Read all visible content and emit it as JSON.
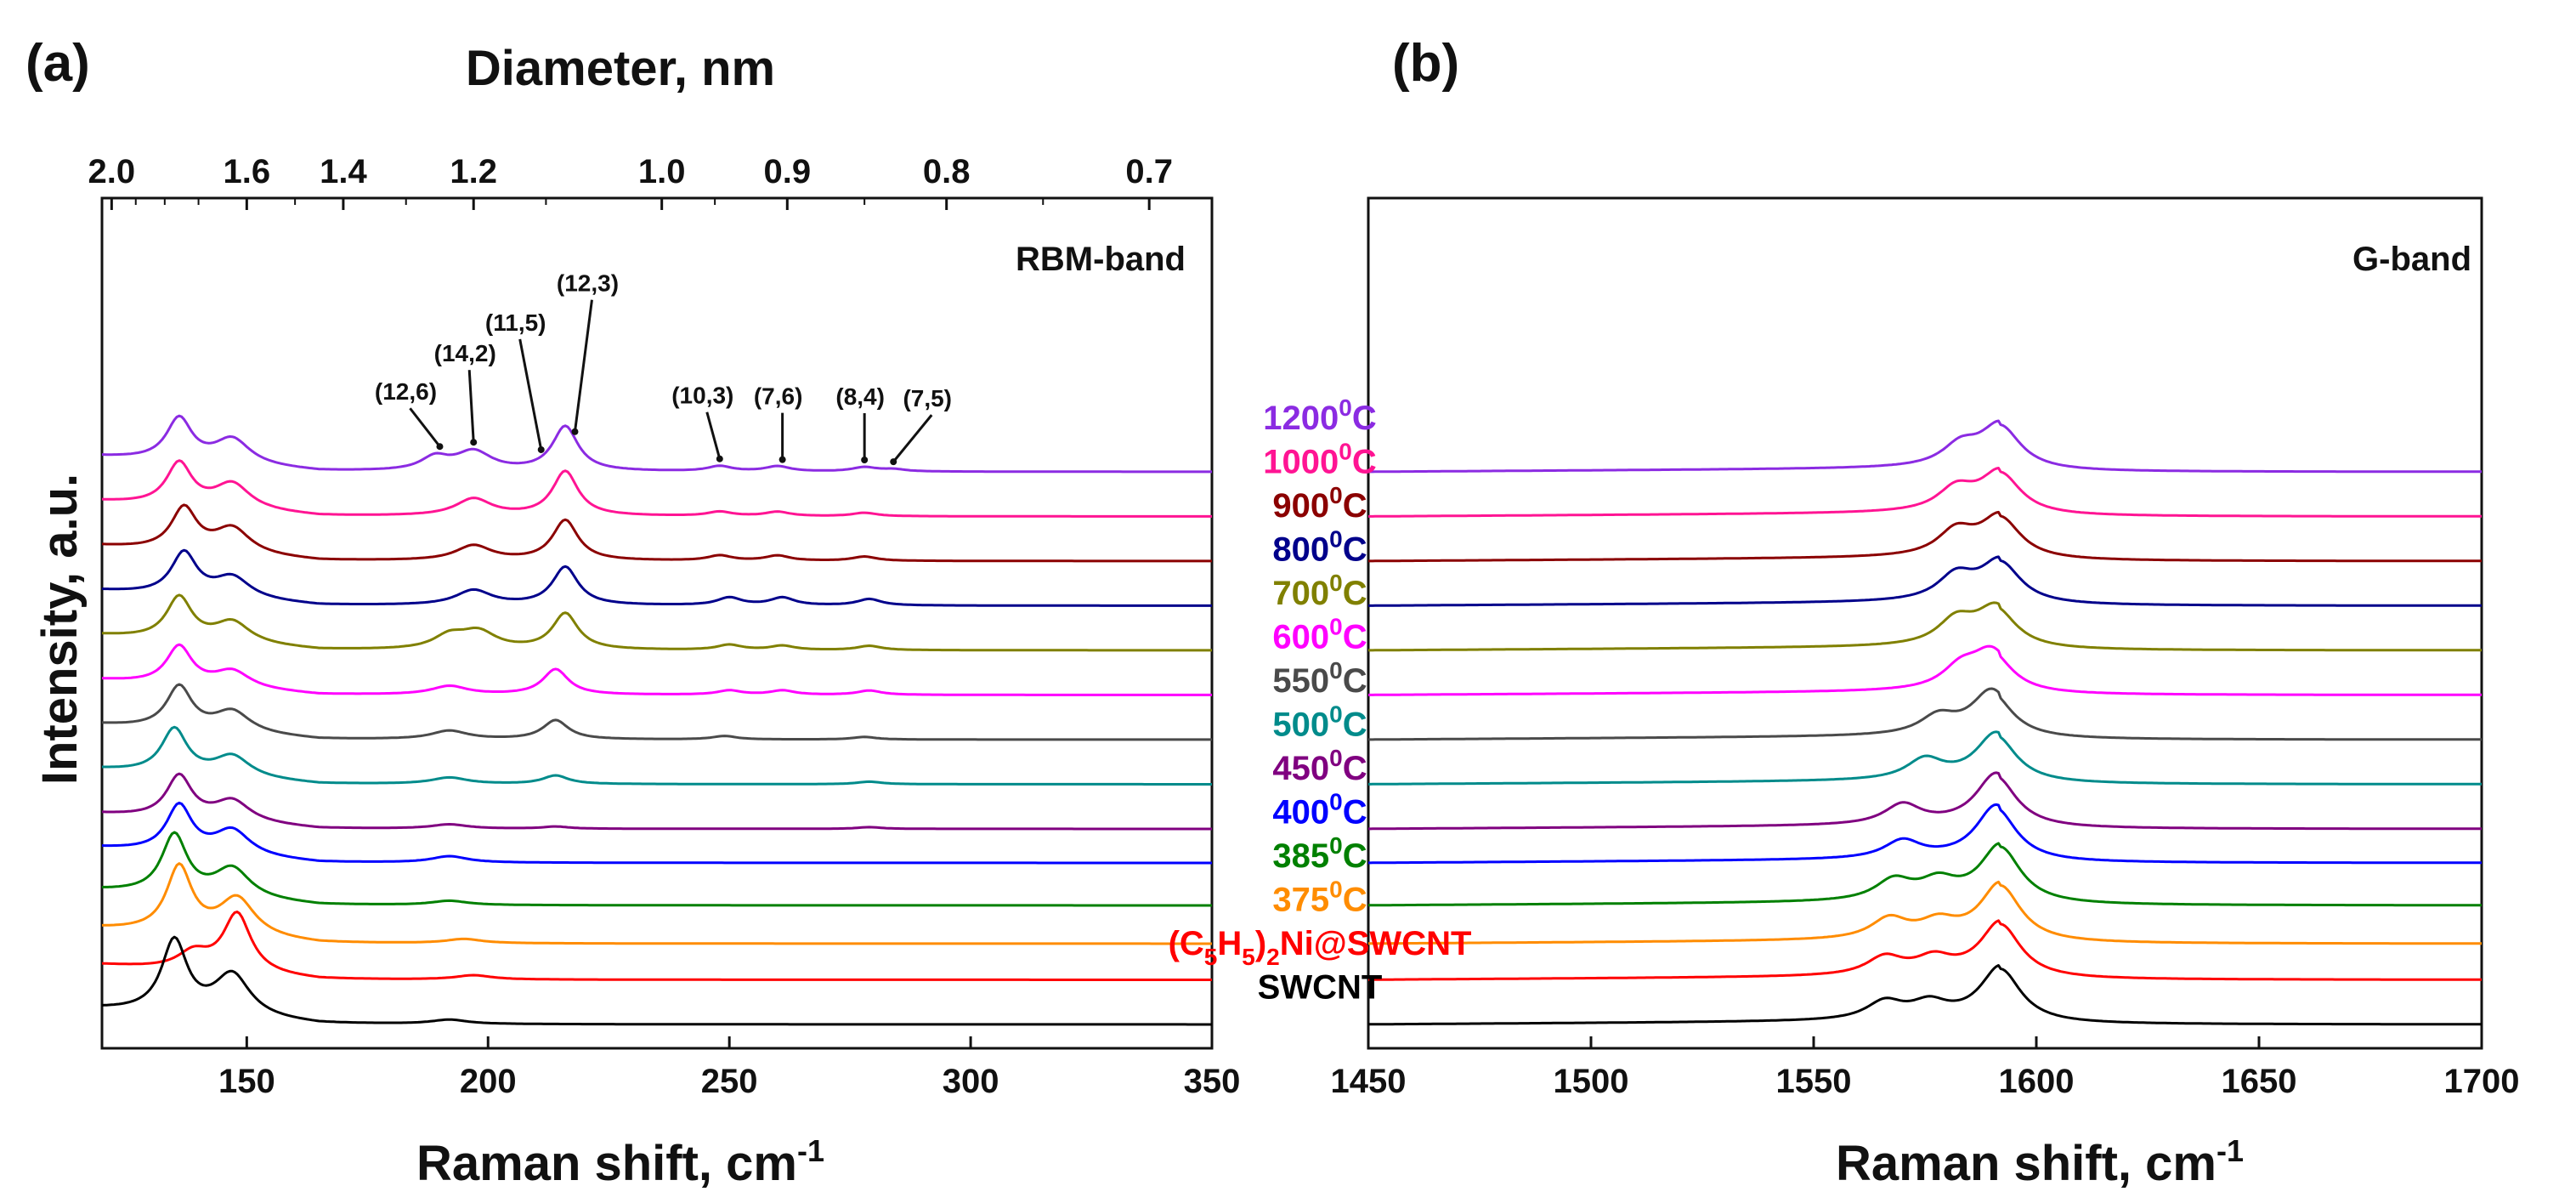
{
  "figure": {
    "panel_a_label": "(a)",
    "panel_b_label": "(b)",
    "shared_ylabel": "Intensity, a.u."
  },
  "chart_data": [
    {
      "type": "line",
      "panel": "(a)",
      "band_label": "RBM-band",
      "xlabel": "Raman shift, cm",
      "xlabel_superscript": "-1",
      "top_axis_label": "Diameter, nm",
      "xlim": [
        120,
        350
      ],
      "xticks": [
        150,
        200,
        250,
        300,
        350
      ],
      "top_ticks": [
        {
          "label": "2.0",
          "x": 122
        },
        {
          "label": "1.6",
          "x": 150
        },
        {
          "label": "1.4",
          "x": 170
        },
        {
          "label": "1.2",
          "x": 197
        },
        {
          "label": "1.0",
          "x": 236
        },
        {
          "label": "0.9",
          "x": 262
        },
        {
          "label": "0.8",
          "x": 295
        },
        {
          "label": "0.7",
          "x": 337
        }
      ],
      "top_minor_ticks": [
        127,
        133,
        140,
        160,
        183,
        212,
        247,
        278,
        315
      ],
      "annotations": [
        {
          "label": "(12,6)",
          "x": 190
        },
        {
          "label": "(14,2)",
          "x": 197
        },
        {
          "label": "(11,5)",
          "x": 211
        },
        {
          "label": "(12,3)",
          "x": 218
        },
        {
          "label": "(10,3)",
          "x": 248
        },
        {
          "label": "(7,6)",
          "x": 261
        },
        {
          "label": "(8,4)",
          "x": 278
        },
        {
          "label": "(7,5)",
          "x": 284
        }
      ]
    },
    {
      "type": "line",
      "panel": "(b)",
      "band_label": "G-band",
      "xlabel": "Raman shift, cm",
      "xlabel_superscript": "-1",
      "xlim": [
        1450,
        1700
      ],
      "xticks": [
        1450,
        1500,
        1550,
        1600,
        1650,
        1700
      ]
    }
  ],
  "series": [
    {
      "name": "1200",
      "label_base": "1200",
      "label_sup": "0",
      "label_tail": "C",
      "color": "#8B2BE2",
      "offset": 12.4,
      "rbm": [
        [
          136,
          1.0,
          3.2
        ],
        [
          147,
          0.6,
          4.5
        ],
        [
          189,
          0.3,
          3.5
        ],
        [
          197,
          0.45,
          4.5
        ],
        [
          216,
          1.05,
          3.2
        ],
        [
          248,
          0.12,
          3.0
        ],
        [
          260,
          0.12,
          3.0
        ],
        [
          278,
          0.1,
          3.0
        ],
        [
          284,
          0.05,
          3.0
        ]
      ],
      "g": [
        [
          1583,
          0.45,
          5.0
        ],
        [
          1592,
          0.95,
          5.5
        ]
      ]
    },
    {
      "name": "1000",
      "label_base": "1000",
      "label_sup": "0",
      "label_tail": "C",
      "color": "#FF1493",
      "offset": 11.35,
      "rbm": [
        [
          136,
          1.0,
          3.2
        ],
        [
          147,
          0.6,
          4.5
        ],
        [
          197,
          0.4,
          4.5
        ],
        [
          216,
          1.05,
          3.2
        ],
        [
          248,
          0.1,
          3.0
        ],
        [
          260,
          0.1,
          3.0
        ],
        [
          278,
          0.08,
          3.0
        ]
      ],
      "g": [
        [
          1582,
          0.5,
          5.0
        ],
        [
          1592,
          0.9,
          5.5
        ]
      ]
    },
    {
      "name": "900",
      "label_base": "900",
      "label_sup": "0",
      "label_tail": "C",
      "color": "#8B0000",
      "offset": 10.3,
      "rbm": [
        [
          137,
          1.0,
          3.2
        ],
        [
          147,
          0.6,
          4.5
        ],
        [
          197,
          0.35,
          4.5
        ],
        [
          216,
          0.95,
          3.2
        ],
        [
          248,
          0.12,
          3.0
        ],
        [
          260,
          0.12,
          3.0
        ],
        [
          278,
          0.1,
          3.0
        ]
      ],
      "g": [
        [
          1582,
          0.55,
          5.0
        ],
        [
          1592,
          0.9,
          5.5
        ]
      ]
    },
    {
      "name": "800",
      "label_base": "800",
      "label_sup": "0",
      "label_tail": "C",
      "color": "#00008B",
      "offset": 9.25,
      "rbm": [
        [
          137,
          1.0,
          3.2
        ],
        [
          147,
          0.5,
          4.5
        ],
        [
          197,
          0.35,
          4.5
        ],
        [
          216,
          0.9,
          3.2
        ],
        [
          250,
          0.18,
          3.0
        ],
        [
          261,
          0.18,
          3.0
        ],
        [
          279,
          0.15,
          3.0
        ]
      ],
      "g": [
        [
          1582,
          0.55,
          5.0
        ],
        [
          1592,
          0.9,
          5.5
        ]
      ]
    },
    {
      "name": "700",
      "label_base": "700",
      "label_sup": "0",
      "label_tail": "C",
      "color": "#808000",
      "offset": 8.2,
      "rbm": [
        [
          136,
          1.0,
          3.2
        ],
        [
          147,
          0.5,
          4.5
        ],
        [
          192,
          0.3,
          4.0
        ],
        [
          198,
          0.4,
          4.5
        ],
        [
          216,
          0.85,
          3.2
        ],
        [
          250,
          0.12,
          3.0
        ],
        [
          261,
          0.1,
          3.0
        ],
        [
          279,
          0.1,
          3.0
        ]
      ],
      "g": [
        [
          1582,
          0.55,
          5.0
        ],
        [
          1591,
          0.85,
          5.5
        ]
      ]
    },
    {
      "name": "600",
      "label_base": "600",
      "label_sup": "0",
      "label_tail": "C",
      "color": "#FF00FF",
      "offset": 7.15,
      "rbm": [
        [
          136,
          0.9,
          3.2
        ],
        [
          147,
          0.4,
          4.5
        ],
        [
          192,
          0.2,
          4.5
        ],
        [
          214,
          0.6,
          3.2
        ],
        [
          250,
          0.1,
          3.0
        ],
        [
          261,
          0.1,
          3.0
        ],
        [
          279,
          0.1,
          3.0
        ]
      ],
      "g": [
        [
          1583,
          0.45,
          5.0
        ],
        [
          1590,
          0.85,
          5.5
        ]
      ]
    },
    {
      "name": "550",
      "label_base": "550",
      "label_sup": "0",
      "label_tail": "C",
      "color": "#4A4A4A",
      "offset": 6.1,
      "rbm": [
        [
          136,
          1.0,
          3.2
        ],
        [
          147,
          0.5,
          4.5
        ],
        [
          192,
          0.2,
          4.5
        ],
        [
          214,
          0.45,
          3.2
        ],
        [
          249,
          0.08,
          3.0
        ],
        [
          278,
          0.06,
          3.0
        ]
      ],
      "g": [
        [
          1578,
          0.4,
          5.0
        ],
        [
          1590,
          1.0,
          5.5
        ]
      ]
    },
    {
      "name": "500",
      "label_base": "500",
      "label_sup": "0",
      "label_tail": "C",
      "color": "#008B8B",
      "offset": 5.05,
      "rbm": [
        [
          135,
          1.05,
          3.2
        ],
        [
          147,
          0.5,
          4.5
        ],
        [
          192,
          0.15,
          4.5
        ],
        [
          214,
          0.2,
          3.2
        ],
        [
          279,
          0.06,
          3.0
        ]
      ],
      "g": [
        [
          1575,
          0.45,
          5.0
        ],
        [
          1591,
          1.05,
          5.5
        ]
      ]
    },
    {
      "name": "450",
      "label_base": "450",
      "label_sup": "0",
      "label_tail": "C",
      "color": "#800080",
      "offset": 4.0,
      "rbm": [
        [
          136,
          1.0,
          3.2
        ],
        [
          147,
          0.5,
          4.5
        ],
        [
          192,
          0.1,
          4.5
        ],
        [
          214,
          0.05,
          3.2
        ],
        [
          279,
          0.04,
          3.0
        ]
      ],
      "g": [
        [
          1570,
          0.45,
          5.0
        ],
        [
          1591,
          1.15,
          5.5
        ]
      ]
    },
    {
      "name": "400",
      "label_base": "400",
      "label_sup": "0",
      "label_tail": "C",
      "color": "#0000FF",
      "offset": 3.2,
      "rbm": [
        [
          136,
          1.1,
          3.2
        ],
        [
          147,
          0.6,
          4.5
        ],
        [
          192,
          0.15,
          4.5
        ]
      ],
      "g": [
        [
          1570,
          0.4,
          5.0
        ],
        [
          1591,
          1.2,
          5.5
        ]
      ]
    },
    {
      "name": "385",
      "label_base": "385",
      "label_sup": "0",
      "label_tail": "C",
      "color": "#008000",
      "offset": 2.2,
      "rbm": [
        [
          135,
          1.4,
          3.2
        ],
        [
          147,
          0.7,
          4.5
        ],
        [
          192,
          0.1,
          4.5
        ]
      ],
      "g": [
        [
          1568,
          0.45,
          5.0
        ],
        [
          1578,
          0.4,
          5.0
        ],
        [
          1592,
          1.25,
          5.5
        ]
      ]
    },
    {
      "name": "375",
      "label_base": "375",
      "label_sup": "0",
      "label_tail": "C",
      "color": "#FF8C00",
      "offset": 1.3,
      "rbm": [
        [
          136,
          1.55,
          3.2
        ],
        [
          148,
          0.9,
          4.5
        ],
        [
          195,
          0.1,
          4.5
        ]
      ],
      "g": [
        [
          1567,
          0.45,
          5.0
        ],
        [
          1578,
          0.35,
          5.0
        ],
        [
          1592,
          1.25,
          5.5
        ]
      ]
    },
    {
      "name": "(C5H5)2Ni@SWCNT",
      "label_base": "(C",
      "label_sub1": "5",
      "label_mid": "H",
      "label_sub2": "5",
      "label_tail": ")",
      "label_sub3": "2",
      "label_end": "Ni@SWCNT",
      "color": "#FF0000",
      "offset": 0.45,
      "rbm": [
        [
          148,
          1.4,
          3.5
        ],
        [
          139,
          0.4,
          4.0
        ],
        [
          197,
          0.1,
          4.5
        ]
      ],
      "g": [
        [
          1566,
          0.4,
          5.0
        ],
        [
          1577,
          0.35,
          5.0
        ],
        [
          1592,
          1.2,
          5.5
        ]
      ]
    },
    {
      "name": "SWCNT",
      "label_base": "SWCNT",
      "color": "#000000",
      "offset": -0.6,
      "rbm": [
        [
          135,
          1.7,
          3.2
        ],
        [
          147,
          1.0,
          4.5
        ],
        [
          192,
          0.1,
          4.5
        ]
      ],
      "g": [
        [
          1566,
          0.4,
          5.0
        ],
        [
          1576,
          0.35,
          5.0
        ],
        [
          1592,
          1.2,
          5.5
        ]
      ]
    }
  ]
}
